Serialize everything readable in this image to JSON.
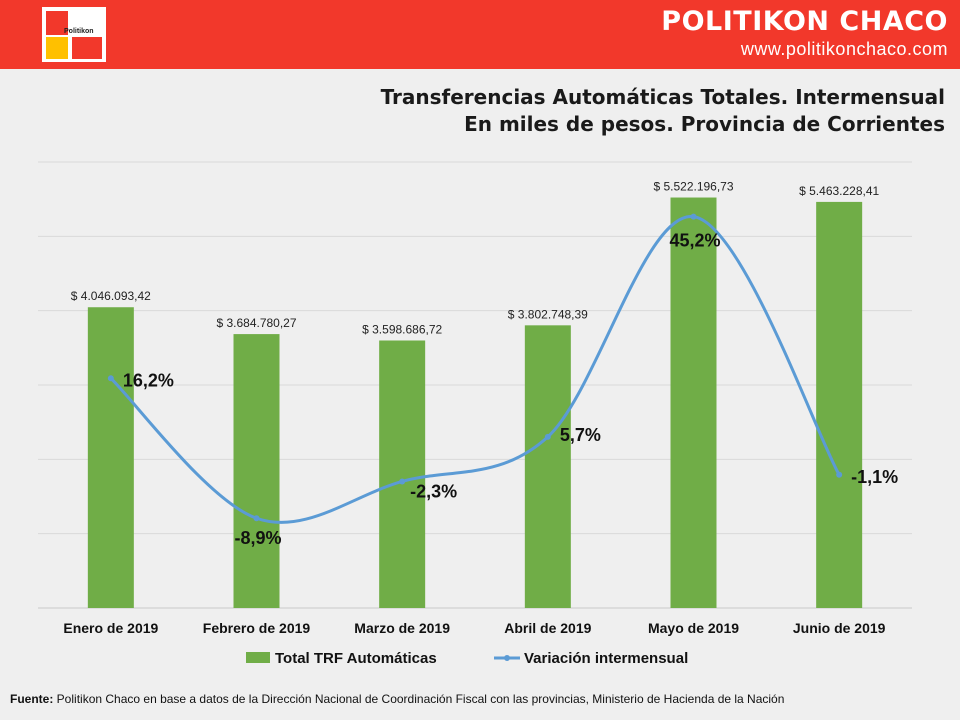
{
  "header": {
    "logo_text": "Politikon",
    "brand_name": "POLITIKON CHACO",
    "brand_url": "www.politikonchaco.com",
    "color": "#f2382b"
  },
  "chart_data": {
    "type": "bar",
    "title": "Transferencias Automáticas Totales. Intermensual",
    "subtitle": "En miles de pesos. Provincia de Corrientes",
    "categories": [
      "Enero de 2019",
      "Febrero de 2019",
      "Marzo de 2019",
      "Abril de 2019",
      "Mayo de 2019",
      "Junio de 2019"
    ],
    "series": [
      {
        "name": "Total TRF Automáticas",
        "type": "bar",
        "color": "#70ad47",
        "values": [
          4046093.42,
          3684780.27,
          3598686.72,
          3802748.39,
          5522196.73,
          5463228.41
        ],
        "labels": [
          "$ 4.046.093,42",
          "$ 3.684.780,27",
          "$ 3.598.686,72",
          "$ 3.802.748,39",
          "$ 5.522.196,73",
          "$ 5.463.228,41"
        ]
      },
      {
        "name": "Variación intermensual",
        "type": "line",
        "smooth": true,
        "color": "#5b9bd5",
        "values": [
          16.2,
          -8.9,
          -2.3,
          5.7,
          45.2,
          -1.1
        ],
        "labels": [
          "16,2%",
          "-8,9%",
          "-2,3%",
          "5,7%",
          "45,2%",
          "-1,1%"
        ]
      }
    ],
    "ylim": [
      0,
      6000000
    ],
    "line_ylim": [
      -25,
      55
    ],
    "grid": true,
    "legend": "bottom"
  },
  "source": {
    "label": "Fuente:",
    "text": " Politikon Chaco en base a datos de la Dirección Nacional de Coordinación Fiscal con las provincias, Ministerio de Hacienda de la Nación"
  }
}
